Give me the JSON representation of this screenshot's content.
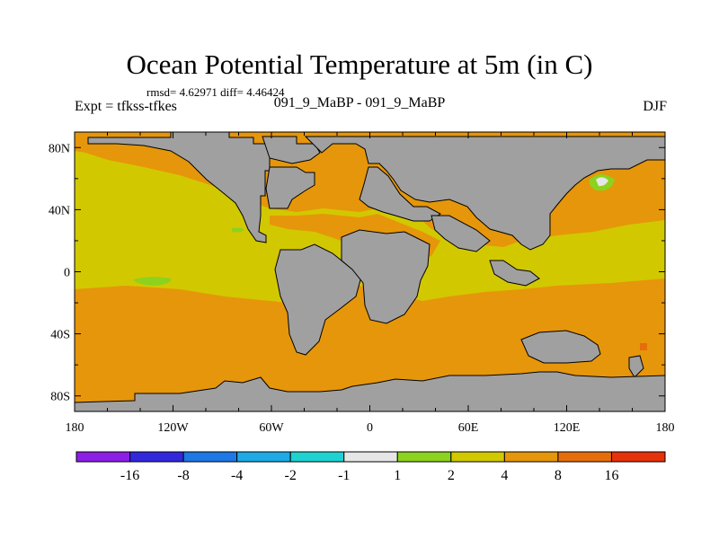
{
  "chart_data": {
    "type": "heatmap",
    "title": "Ocean Potential Temperature at 5m (in C)",
    "stats_text": "rmsd= 4.62971 diff= 4.46424",
    "experiment_label": "Expt = tfkss-tfkes",
    "center_label": "091_9_MaBP - 091_9_MaBP",
    "season_label": "DJF",
    "x_ticks": [
      "180",
      "120W",
      "60W",
      "0",
      "60E",
      "120E",
      "180"
    ],
    "y_ticks": [
      "80N",
      "40N",
      "0",
      "40S",
      "80S"
    ],
    "colorbar": {
      "colors": [
        "#8c1ee6",
        "#3228dc",
        "#1e78e6",
        "#1eaae6",
        "#1ed2d2",
        "#e6e6e6",
        "#8cd21e",
        "#d2c800",
        "#e6960a",
        "#e66e0a",
        "#e6320a"
      ],
      "labels": [
        "-16",
        "-8",
        "-4",
        "-2",
        "-1",
        "1",
        "2",
        "4",
        "8",
        "16"
      ]
    },
    "colors": {
      "land": "#a0a0a0",
      "ocean_base": "#d2c800",
      "warm": "#e6960a",
      "hot": "#e66e0a",
      "cool": "#8cd21e",
      "neutral": "#e6e6e6"
    }
  }
}
